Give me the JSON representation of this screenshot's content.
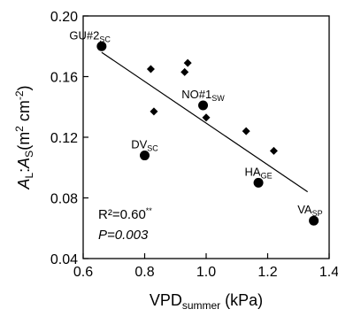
{
  "chart_data": {
    "type": "scatter",
    "xlabel": {
      "main": "VPD",
      "sub": "summer",
      "unit": " (kPa)"
    },
    "ylabel": {
      "a": "A",
      "a_sub": "L",
      "sep": ":",
      "b": "A",
      "b_sub": "S",
      "unit": "(m",
      "sup1": "2",
      "mid": " cm",
      "sup2": "-2",
      "close": ")"
    },
    "xlim": [
      0.6,
      1.4
    ],
    "ylim": [
      0.04,
      0.2
    ],
    "xticks": [
      "0.6",
      "0.8",
      "1.0",
      "1.2",
      "1.4"
    ],
    "yticks": [
      "0.04",
      "0.08",
      "0.12",
      "0.16",
      "0.20"
    ],
    "xtick_values": [
      0.6,
      0.8,
      1.0,
      1.2,
      1.4
    ],
    "ytick_values": [
      0.04,
      0.08,
      0.12,
      0.16,
      0.2
    ],
    "series": [
      {
        "marker": "circle",
        "points": [
          {
            "x": 0.66,
            "y": 0.18,
            "label": "GU#2",
            "sub": "SC",
            "anchor": "end-up"
          },
          {
            "x": 0.99,
            "y": 0.141,
            "label": "NO#1",
            "sub": "SW",
            "anchor": "middle-up"
          },
          {
            "x": 0.8,
            "y": 0.108,
            "label": "DV",
            "sub": "SC",
            "anchor": "middle-up"
          },
          {
            "x": 1.17,
            "y": 0.09,
            "label": "HA",
            "sub": "GE",
            "anchor": "middle-up"
          },
          {
            "x": 1.35,
            "y": 0.065,
            "label": "VA",
            "sub": "SP",
            "anchor": "end-up"
          }
        ]
      },
      {
        "marker": "diamond",
        "points": [
          {
            "x": 0.82,
            "y": 0.165
          },
          {
            "x": 0.83,
            "y": 0.137
          },
          {
            "x": 0.93,
            "y": 0.163
          },
          {
            "x": 0.94,
            "y": 0.169
          },
          {
            "x": 1.0,
            "y": 0.133
          },
          {
            "x": 1.13,
            "y": 0.124
          },
          {
            "x": 1.22,
            "y": 0.111
          }
        ]
      }
    ],
    "regression_line": {
      "x": [
        0.66,
        1.33
      ],
      "y": [
        0.176,
        0.084
      ]
    },
    "annotations": {
      "r2": "R²=0.60",
      "r2_sup": "**",
      "p_label": "P",
      "p_value": "=0.003"
    },
    "grid": false,
    "legend": "none"
  }
}
